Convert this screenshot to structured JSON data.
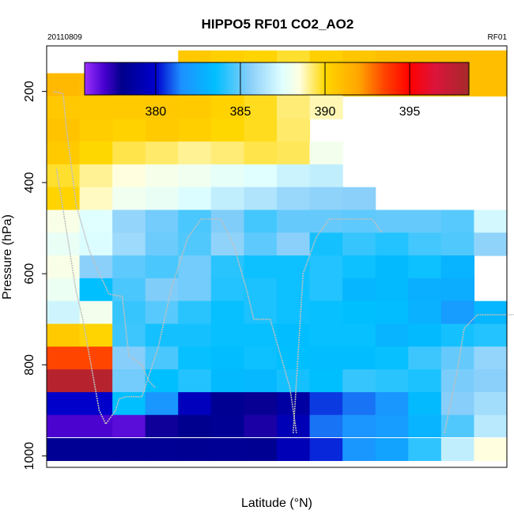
{
  "chart_data": {
    "type": "heatmap",
    "title": "HIPPO5 RF01 CO2_AO2",
    "date": "20110809",
    "flight": "RF01",
    "xlabel": "Latitude (°N)",
    "ylabel": "Pressure (hPa)",
    "ylim": [
      1025,
      100
    ],
    "yticks": [
      200,
      400,
      600,
      800,
      1000
    ],
    "colorbar": {
      "min": 375.8,
      "max": 398.5,
      "ticks": [
        380,
        385,
        390,
        395
      ],
      "stops": [
        {
          "v": 375.8,
          "c": "#9b30ff"
        },
        {
          "v": 377.0,
          "c": "#4400cc"
        },
        {
          "v": 378.0,
          "c": "#00008b"
        },
        {
          "v": 380.0,
          "c": "#0000cd"
        },
        {
          "v": 381.5,
          "c": "#1e90ff"
        },
        {
          "v": 383.5,
          "c": "#00bfff"
        },
        {
          "v": 385.5,
          "c": "#87cefa"
        },
        {
          "v": 387.5,
          "c": "#e0ffff"
        },
        {
          "v": 388.5,
          "c": "#ffffe0"
        },
        {
          "v": 390.0,
          "c": "#ffd700"
        },
        {
          "v": 392.0,
          "c": "#ffa500"
        },
        {
          "v": 393.5,
          "c": "#ff4500"
        },
        {
          "v": 395.0,
          "c": "#ff0000"
        },
        {
          "v": 396.5,
          "c": "#dc143c"
        },
        {
          "v": 398.5,
          "c": "#a52a2a"
        }
      ]
    },
    "rows": [
      {
        "p_top": 110,
        "p_bot": 160,
        "values": [
          null,
          null,
          null,
          null,
          390.6,
          390.3,
          390.1,
          389.7,
          390.3,
          390.7,
          391.0,
          391.0,
          391.0,
          391.0
        ]
      },
      {
        "p_top": 160,
        "p_bot": 210,
        "values": [
          391.2,
          391.0,
          390.8,
          390.9,
          390.4,
          390.0,
          389.6,
          389.4,
          389.0,
          390.5,
          390.9,
          391.0,
          391.0,
          391.0
        ]
      },
      {
        "p_top": 210,
        "p_bot": 260,
        "values": [
          390.6,
          390.5,
          390.5,
          390.6,
          390.5,
          390.2,
          389.8,
          389.2,
          388.8,
          null,
          null,
          null,
          null,
          null
        ]
      },
      {
        "p_top": 260,
        "p_bot": 310,
        "values": [
          390.8,
          390.4,
          390.2,
          390.5,
          390.3,
          390.0,
          389.8,
          389.3,
          null,
          null,
          null,
          null,
          null,
          null
        ]
      },
      {
        "p_top": 310,
        "p_bot": 360,
        "values": [
          390.5,
          390.0,
          389.5,
          389.3,
          389.0,
          389.2,
          389.5,
          389.4,
          388.1,
          null,
          null,
          null,
          null,
          null
        ]
      },
      {
        "p_top": 360,
        "p_bot": 410,
        "values": [
          389.7,
          389.0,
          388.5,
          388.2,
          388.0,
          387.7,
          387.5,
          387.0,
          386.8,
          null,
          null,
          null,
          null,
          null
        ]
      },
      {
        "p_top": 410,
        "p_bot": 460,
        "values": [
          390.1,
          388.7,
          388.0,
          387.8,
          387.4,
          386.8,
          386.4,
          385.9,
          385.7,
          385.6,
          null,
          null,
          null,
          null
        ]
      },
      {
        "p_top": 460,
        "p_bot": 510,
        "values": [
          388.3,
          387.5,
          385.8,
          385.2,
          384.6,
          385.4,
          384.5,
          385.0,
          385.0,
          384.9,
          385.0,
          385.0,
          384.8,
          387.2
        ]
      },
      {
        "p_top": 510,
        "p_bot": 560,
        "values": [
          387.8,
          387.4,
          386.0,
          385.1,
          384.7,
          385.7,
          384.9,
          385.6,
          383.8,
          384.3,
          384.0,
          384.5,
          384.7,
          385.7
        ]
      },
      {
        "p_top": 560,
        "p_bot": 610,
        "values": [
          388.3,
          385.6,
          384.9,
          384.6,
          385.2,
          384.1,
          383.7,
          383.7,
          384.0,
          383.7,
          383.3,
          383.7,
          383.0,
          null
        ]
      },
      {
        "p_top": 610,
        "p_bot": 660,
        "values": [
          387.9,
          383.5,
          384.6,
          385.4,
          385.2,
          384.0,
          383.9,
          383.7,
          384.0,
          383.1,
          383.3,
          382.8,
          382.7,
          null
        ]
      },
      {
        "p_top": 660,
        "p_bot": 710,
        "values": [
          387.1,
          388.1,
          384.3,
          384.8,
          384.1,
          383.6,
          383.9,
          383.7,
          383.6,
          383.5,
          383.4,
          382.9,
          382.0,
          383.1
        ]
      },
      {
        "p_top": 710,
        "p_bot": 760,
        "values": [
          390.5,
          390.1,
          384.4,
          383.8,
          383.8,
          383.6,
          383.6,
          383.4,
          383.6,
          383.6,
          383.0,
          383.3,
          383.8,
          384.0
        ]
      },
      {
        "p_top": 760,
        "p_bot": 810,
        "values": [
          393.5,
          393.5,
          385.5,
          384.6,
          383.6,
          383.4,
          383.7,
          383.5,
          383.4,
          383.4,
          383.6,
          384.4,
          385.0,
          385.8
        ]
      },
      {
        "p_top": 810,
        "p_bot": 860,
        "values": [
          397.9,
          397.9,
          385.2,
          383.5,
          384.0,
          383.3,
          383.2,
          383.8,
          383.5,
          384.3,
          384.1,
          383.9,
          385.3,
          385.6
        ]
      },
      {
        "p_top": 860,
        "p_bot": 910,
        "values": [
          379.9,
          379.9,
          383.5,
          381.8,
          379.5,
          378.2,
          377.9,
          378.7,
          380.6,
          381.2,
          381.8,
          383.3,
          385.5,
          386.1
        ]
      },
      {
        "p_top": 910,
        "p_bot": 960,
        "values": [
          376.9,
          376.9,
          376.7,
          377.8,
          378.1,
          378.3,
          377.6,
          379.3,
          381.2,
          381.7,
          382.0,
          383.0,
          384.7,
          386.6
        ]
      },
      {
        "p_top": 960,
        "p_bot": 1010,
        "values": [
          378.3,
          378.3,
          378.3,
          378.3,
          378.2,
          378.3,
          378.2,
          379.3,
          380.4,
          381.8,
          382.3,
          384.2,
          386.8,
          388.5
        ]
      }
    ],
    "flight_track": [
      [
        [
          0.2,
          200
        ],
        [
          0.5,
          205
        ],
        [
          0.6,
          280
        ],
        [
          0.9,
          450
        ],
        [
          1.3,
          550
        ],
        [
          1.6,
          600
        ],
        [
          1.9,
          645
        ],
        [
          2.3,
          650
        ],
        [
          2.5,
          780
        ],
        [
          2.9,
          800
        ],
        [
          3.1,
          835
        ],
        [
          3.3,
          850
        ]
      ],
      [
        [
          0.3,
          370
        ],
        [
          0.5,
          460
        ],
        [
          0.9,
          640
        ],
        [
          1.1,
          700
        ],
        [
          1.3,
          780
        ],
        [
          1.6,
          900
        ],
        [
          1.8,
          930
        ],
        [
          2.1,
          900
        ],
        [
          2.2,
          875
        ],
        [
          2.4,
          870
        ],
        [
          2.9,
          870
        ],
        [
          3.4,
          760
        ],
        [
          3.8,
          630
        ],
        [
          4.3,
          520
        ],
        [
          4.7,
          480
        ],
        [
          5.3,
          480
        ],
        [
          5.7,
          540
        ],
        [
          6.1,
          640
        ],
        [
          6.3,
          700
        ],
        [
          6.8,
          700
        ],
        [
          7.0,
          750
        ],
        [
          7.2,
          800
        ],
        [
          7.4,
          850
        ],
        [
          7.5,
          900
        ],
        [
          7.6,
          950
        ]
      ],
      [
        [
          7.5,
          950
        ],
        [
          7.8,
          600
        ],
        [
          8.2,
          520
        ],
        [
          8.6,
          480
        ],
        [
          9.9,
          480
        ],
        [
          10.2,
          510
        ]
      ],
      [
        [
          10.2,
          185
        ],
        [
          12.4,
          185
        ]
      ],
      [
        [
          12.1,
          950
        ],
        [
          12.3,
          880
        ],
        [
          12.5,
          810
        ],
        [
          12.7,
          720
        ],
        [
          13.1,
          690
        ],
        [
          14.0,
          690
        ],
        [
          14.9,
          690
        ],
        [
          15.3,
          740
        ],
        [
          15.4,
          850
        ],
        [
          15.5,
          910
        ],
        [
          15.6,
          960
        ]
      ],
      [
        [
          15.1,
          890
        ],
        [
          15.3,
          910
        ],
        [
          15.5,
          910
        ]
      ]
    ]
  }
}
